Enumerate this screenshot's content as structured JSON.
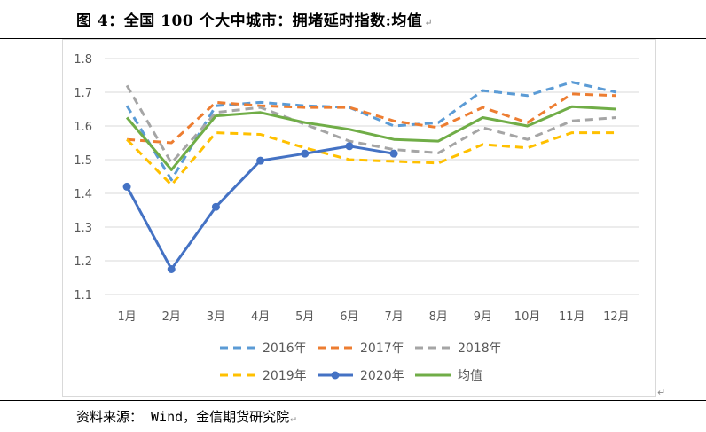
{
  "title": "图 4：全国 100 个大中城市：拥堵延时指数:均值",
  "source": "资料来源： Wind，金信期货研究院",
  "para_mark": "↵",
  "chart_data": {
    "type": "line",
    "categories": [
      "1月",
      "2月",
      "3月",
      "4月",
      "5月",
      "6月",
      "7月",
      "8月",
      "9月",
      "10月",
      "11月",
      "12月"
    ],
    "ylim": [
      1.1,
      1.8
    ],
    "yticks": [
      "1.1",
      "1.2",
      "1.3",
      "1.4",
      "1.5",
      "1.6",
      "1.7",
      "1.8"
    ],
    "grid": "horizontal",
    "legend_position": "bottom",
    "series": [
      {
        "name": "2016年",
        "color": "#5B9BD5",
        "style": "dashed",
        "values": [
          1.66,
          1.44,
          1.66,
          1.67,
          1.66,
          1.655,
          1.6,
          1.61,
          1.705,
          1.69,
          1.73,
          1.7
        ]
      },
      {
        "name": "2017年",
        "color": "#ED7D31",
        "style": "dashed",
        "values": [
          1.56,
          1.55,
          1.67,
          1.66,
          1.655,
          1.655,
          1.615,
          1.595,
          1.655,
          1.61,
          1.695,
          1.69
        ]
      },
      {
        "name": "2018年",
        "color": "#A5A5A5",
        "style": "dashed",
        "values": [
          1.72,
          1.49,
          1.64,
          1.655,
          1.605,
          1.555,
          1.53,
          1.52,
          1.595,
          1.56,
          1.615,
          1.625
        ]
      },
      {
        "name": "2019年",
        "color": "#FFC000",
        "style": "dashed",
        "values": [
          1.56,
          1.425,
          1.58,
          1.575,
          1.535,
          1.5,
          1.495,
          1.49,
          1.545,
          1.535,
          1.58,
          1.58
        ]
      },
      {
        "name": "2020年",
        "color": "#4472C4",
        "style": "solid",
        "markers": true,
        "values": [
          1.42,
          1.175,
          1.36,
          1.497,
          1.518,
          1.54,
          1.518,
          null,
          null,
          null,
          null,
          null
        ]
      },
      {
        "name": "均值",
        "color": "#70AD47",
        "style": "solid",
        "values": [
          1.625,
          1.47,
          1.63,
          1.64,
          1.61,
          1.59,
          1.56,
          1.555,
          1.625,
          1.6,
          1.657,
          1.65
        ]
      }
    ]
  }
}
